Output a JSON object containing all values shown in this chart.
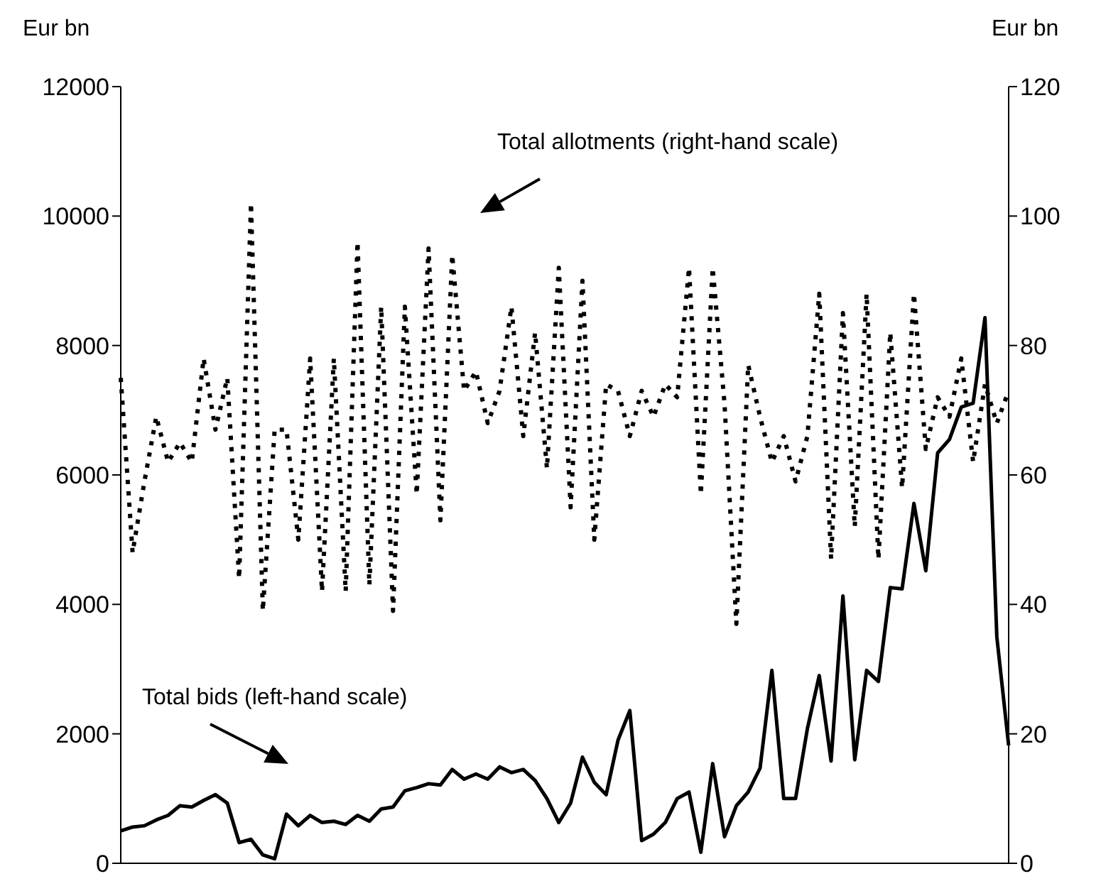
{
  "chart_data": {
    "type": "line",
    "ylabel": "Eur bn",
    "y2label": "Eur bn",
    "categories": [
      null,
      null,
      null,
      null,
      null,
      null,
      null,
      null,
      null,
      null,
      null,
      null,
      null,
      null,
      null,
      null,
      null,
      null,
      null,
      null,
      null,
      null,
      null,
      null,
      null,
      null,
      null,
      null,
      null,
      null,
      null,
      null,
      null,
      null,
      null,
      null,
      null,
      null,
      null,
      null,
      null,
      null,
      null,
      null,
      null,
      null,
      null,
      null,
      null,
      null,
      null,
      null,
      null,
      null,
      null,
      null,
      null,
      null,
      null,
      null,
      null,
      null,
      null,
      null,
      null,
      null,
      null,
      null,
      null,
      null,
      null,
      null,
      null,
      null,
      null,
      null
    ],
    "series": [
      {
        "color": "#000000",
        "line_style": "solid",
        "values": [
          500,
          560,
          580,
          670,
          740,
          890,
          870,
          970,
          1060,
          930,
          320,
          370,
          130,
          70,
          760,
          580,
          740,
          630,
          650,
          600,
          740,
          650,
          840,
          870,
          1120,
          1170,
          1230,
          1210,
          1450,
          1300,
          1380,
          1300,
          1490,
          1400,
          1450,
          1280,
          1000,
          630,
          930,
          1640,
          1250,
          1060,
          1900,
          2360,
          350,
          450,
          630,
          1000,
          1100,
          170,
          1540,
          410,
          890,
          1100,
          1470,
          2980,
          1000,
          1000,
          2080,
          2900,
          1580,
          4130,
          1600,
          2980,
          2810,
          4260,
          4240,
          5560,
          4520,
          6340,
          6550,
          7050,
          7110,
          8430,
          3500,
          1820
        ]
      },
      {
        "color": "#000000",
        "line_style": "dotted",
        "axis": "y2",
        "values": [
          75,
          48,
          59,
          69,
          62,
          65,
          62,
          78,
          67,
          75,
          44,
          102,
          39,
          67,
          67,
          50,
          78,
          42,
          78,
          42,
          96,
          43,
          86,
          39,
          86,
          57,
          95,
          53,
          94,
          73,
          76,
          68,
          73,
          86,
          66,
          82,
          61,
          92,
          55,
          90,
          50,
          74,
          73,
          66,
          73,
          69,
          74,
          72,
          92,
          57,
          92,
          71,
          37,
          77,
          69,
          62,
          66,
          59,
          66,
          88,
          47,
          85,
          52,
          88,
          47,
          82,
          58,
          88,
          64,
          72,
          69,
          78,
          62,
          74,
          68,
          73
        ]
      }
    ],
    "ylim": [
      0,
      12000
    ],
    "yticks": [
      0,
      2000,
      4000,
      6000,
      8000,
      10000,
      12000
    ],
    "y2lim": [
      0,
      120
    ],
    "y2ticks": [
      0,
      20,
      40,
      60,
      80,
      100,
      120
    ],
    "tick_labels": "y",
    "grid": false,
    "annotations": [
      "Total allotments (right-hand scale)",
      "Total bids (left-hand scale)"
    ]
  }
}
